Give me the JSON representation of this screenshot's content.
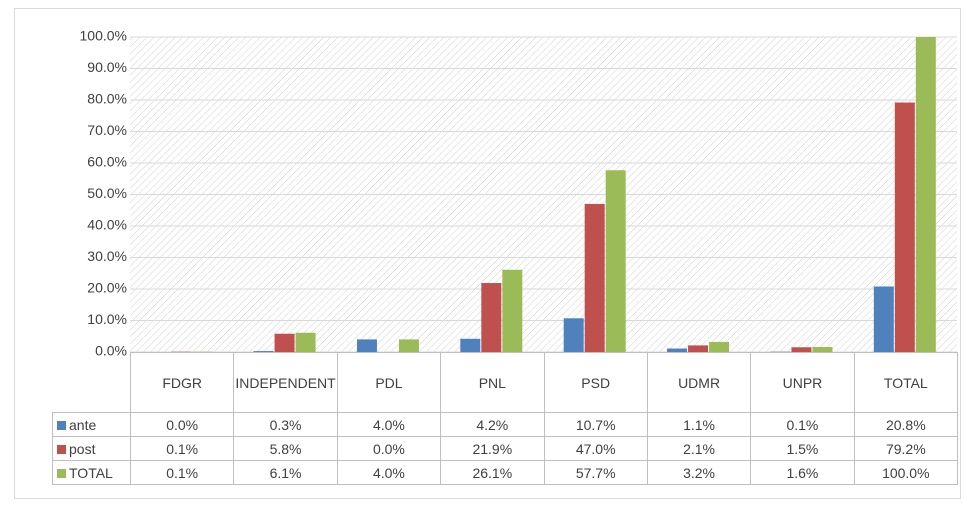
{
  "chart_data": {
    "type": "bar",
    "categories": [
      "FDGR",
      "INDEPENDENT",
      "PDL",
      "PNL",
      "PSD",
      "UDMR",
      "UNPR",
      "TOTAL"
    ],
    "series": [
      {
        "name": "ante",
        "color": "#4f81bd",
        "values": [
          0.0,
          0.3,
          4.0,
          4.2,
          10.7,
          1.1,
          0.1,
          20.8
        ],
        "value_labels": [
          "0.0%",
          "0.3%",
          "4.0%",
          "4.2%",
          "10.7%",
          "1.1%",
          "0.1%",
          "20.8%"
        ]
      },
      {
        "name": "post",
        "color": "#c0504d",
        "values": [
          0.1,
          5.8,
          0.0,
          21.9,
          47.0,
          2.1,
          1.5,
          79.2
        ],
        "value_labels": [
          "0.1%",
          "5.8%",
          "0.0%",
          "21.9%",
          "47.0%",
          "2.1%",
          "1.5%",
          "79.2%"
        ]
      },
      {
        "name": "TOTAL",
        "color": "#9bbb59",
        "values": [
          0.1,
          6.1,
          4.0,
          26.1,
          57.7,
          3.2,
          1.6,
          100.0
        ],
        "value_labels": [
          "0.1%",
          "6.1%",
          "4.0%",
          "26.1%",
          "57.7%",
          "3.2%",
          "1.6%",
          "100.0%"
        ]
      }
    ],
    "ylim": [
      0,
      100
    ],
    "yticks": [
      {
        "value": 0,
        "label": "0.0%"
      },
      {
        "value": 10,
        "label": "10.0%"
      },
      {
        "value": 20,
        "label": "20.0%"
      },
      {
        "value": 30,
        "label": "30.0%"
      },
      {
        "value": 40,
        "label": "40.0%"
      },
      {
        "value": 50,
        "label": "50.0%"
      },
      {
        "value": 60,
        "label": "60.0%"
      },
      {
        "value": 70,
        "label": "70.0%"
      },
      {
        "value": 80,
        "label": "80.0%"
      },
      {
        "value": 90,
        "label": "90.0%"
      },
      {
        "value": 100,
        "label": "100.0%"
      }
    ],
    "grid": true,
    "data_table": true
  }
}
